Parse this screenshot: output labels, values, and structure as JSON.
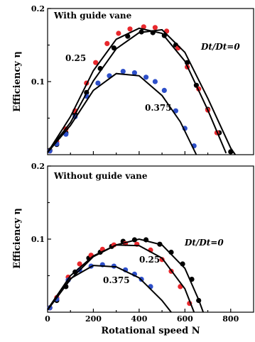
{
  "chart_data": [
    {
      "type": "scatter",
      "title": "With guide vane",
      "ylabel": "Efficiency η",
      "xlabel": "",
      "xlim": [
        0,
        900
      ],
      "ylim": [
        0,
        0.2
      ],
      "yticks": [
        "0.1",
        "0.2"
      ],
      "xticks": [],
      "grid": false,
      "series": [
        {
          "name": "Dt/Dt=0",
          "color": "#000000",
          "points": [
            [
              10,
              0.006
            ],
            [
              40,
              0.014
            ],
            [
              80,
              0.03
            ],
            [
              120,
              0.055
            ],
            [
              170,
              0.085
            ],
            [
              230,
              0.118
            ],
            [
              290,
              0.146
            ],
            [
              350,
              0.162
            ],
            [
              410,
              0.168
            ],
            [
              460,
              0.167
            ],
            [
              510,
              0.163
            ],
            [
              560,
              0.15
            ],
            [
              610,
              0.126
            ],
            [
              650,
              0.095
            ],
            [
              700,
              0.062
            ],
            [
              750,
              0.03
            ],
            [
              800,
              0.004
            ]
          ],
          "fit": [
            [
              0,
              0.004
            ],
            [
              100,
              0.044
            ],
            [
              200,
              0.101
            ],
            [
              300,
              0.145
            ],
            [
              400,
              0.167
            ],
            [
              500,
              0.171
            ],
            [
              600,
              0.14
            ],
            [
              700,
              0.077
            ],
            [
              800,
              0.009
            ],
            [
              820,
              -0.002
            ]
          ]
        },
        {
          "name": "0.25",
          "color": "#e8282d",
          "points": [
            [
              10,
              0.005
            ],
            [
              40,
              0.018
            ],
            [
              80,
              0.035
            ],
            [
              120,
              0.06
            ],
            [
              170,
              0.098
            ],
            [
              210,
              0.126
            ],
            [
              260,
              0.152
            ],
            [
              310,
              0.166
            ],
            [
              360,
              0.172
            ],
            [
              420,
              0.175
            ],
            [
              470,
              0.174
            ],
            [
              520,
              0.169
            ],
            [
              570,
              0.146
            ],
            [
              610,
              0.12
            ],
            [
              660,
              0.09
            ],
            [
              700,
              0.061
            ],
            [
              740,
              0.03
            ]
          ],
          "fit": [
            [
              0,
              0.003
            ],
            [
              100,
              0.052
            ],
            [
              200,
              0.115
            ],
            [
              300,
              0.158
            ],
            [
              400,
              0.173
            ],
            [
              500,
              0.166
            ],
            [
              600,
              0.128
            ],
            [
              700,
              0.061
            ],
            [
              780,
              0.002
            ]
          ]
        },
        {
          "name": "0.375",
          "color": "#2d4fc9",
          "points": [
            [
              10,
              0.005
            ],
            [
              40,
              0.015
            ],
            [
              80,
              0.028
            ],
            [
              120,
              0.052
            ],
            [
              170,
              0.08
            ],
            [
              220,
              0.098
            ],
            [
              270,
              0.108
            ],
            [
              330,
              0.114
            ],
            [
              380,
              0.112
            ],
            [
              430,
              0.106
            ],
            [
              470,
              0.1
            ],
            [
              510,
              0.088
            ],
            [
              560,
              0.06
            ],
            [
              600,
              0.036
            ],
            [
              640,
              0.012
            ]
          ],
          "fit": [
            [
              0,
              0.003
            ],
            [
              100,
              0.04
            ],
            [
              200,
              0.088
            ],
            [
              300,
              0.111
            ],
            [
              400,
              0.108
            ],
            [
              500,
              0.081
            ],
            [
              580,
              0.045
            ],
            [
              650,
              -0.001
            ]
          ]
        }
      ],
      "annotations": [
        "Dt/Dt=0",
        "0.25",
        "0.375"
      ]
    },
    {
      "type": "scatter",
      "title": "Without guide vane",
      "ylabel": "Efficiency η",
      "xlabel": "Rotational speed N",
      "xlim": [
        0,
        900
      ],
      "ylim": [
        0,
        0.2
      ],
      "xticks": [
        "0",
        "200",
        "400",
        "600",
        "800"
      ],
      "yticks": [
        "0.1",
        "0.2"
      ],
      "grid": false,
      "series": [
        {
          "name": "Dt/Dt=0",
          "color": "#000000",
          "points": [
            [
              10,
              0.006
            ],
            [
              40,
              0.016
            ],
            [
              80,
              0.035
            ],
            [
              120,
              0.055
            ],
            [
              180,
              0.074
            ],
            [
              230,
              0.082
            ],
            [
              280,
              0.09
            ],
            [
              330,
              0.097
            ],
            [
              380,
              0.099
            ],
            [
              430,
              0.099
            ],
            [
              490,
              0.093
            ],
            [
              540,
              0.082
            ],
            [
              590,
              0.066
            ],
            [
              630,
              0.045
            ],
            [
              660,
              0.016
            ]
          ],
          "fit": [
            [
              0,
              0.003
            ],
            [
              100,
              0.045
            ],
            [
              200,
              0.076
            ],
            [
              300,
              0.092
            ],
            [
              400,
              0.1
            ],
            [
              500,
              0.092
            ],
            [
              600,
              0.06
            ],
            [
              660,
              0.017
            ],
            [
              680,
              -0.002
            ]
          ]
        },
        {
          "name": "0.25",
          "color": "#e8282d",
          "points": [
            [
              10,
              0.006
            ],
            [
              40,
              0.02
            ],
            [
              90,
              0.048
            ],
            [
              140,
              0.066
            ],
            [
              190,
              0.078
            ],
            [
              240,
              0.086
            ],
            [
              290,
              0.092
            ],
            [
              340,
              0.094
            ],
            [
              390,
              0.093
            ],
            [
              450,
              0.085
            ],
            [
              500,
              0.072
            ],
            [
              540,
              0.056
            ],
            [
              580,
              0.035
            ],
            [
              620,
              0.012
            ]
          ],
          "fit": [
            [
              0,
              0.004
            ],
            [
              100,
              0.05
            ],
            [
              200,
              0.077
            ],
            [
              300,
              0.092
            ],
            [
              400,
              0.091
            ],
            [
              500,
              0.074
            ],
            [
              600,
              0.032
            ],
            [
              640,
              -0.001
            ]
          ]
        },
        {
          "name": "0.375",
          "color": "#2d4fc9",
          "points": [
            [
              10,
              0.006
            ],
            [
              40,
              0.018
            ],
            [
              90,
              0.044
            ],
            [
              140,
              0.058
            ],
            [
              190,
              0.063
            ],
            [
              240,
              0.065
            ],
            [
              290,
              0.063
            ],
            [
              340,
              0.058
            ],
            [
              380,
              0.052
            ],
            [
              410,
              0.045
            ],
            [
              450,
              0.035
            ]
          ],
          "fit": [
            [
              0,
              0.004
            ],
            [
              100,
              0.046
            ],
            [
              200,
              0.064
            ],
            [
              300,
              0.062
            ],
            [
              400,
              0.047
            ],
            [
              500,
              0.016
            ],
            [
              540,
              -0.001
            ]
          ]
        }
      ],
      "annotations": [
        "Dt/Dt=0",
        "0.25",
        "0.375"
      ]
    }
  ]
}
